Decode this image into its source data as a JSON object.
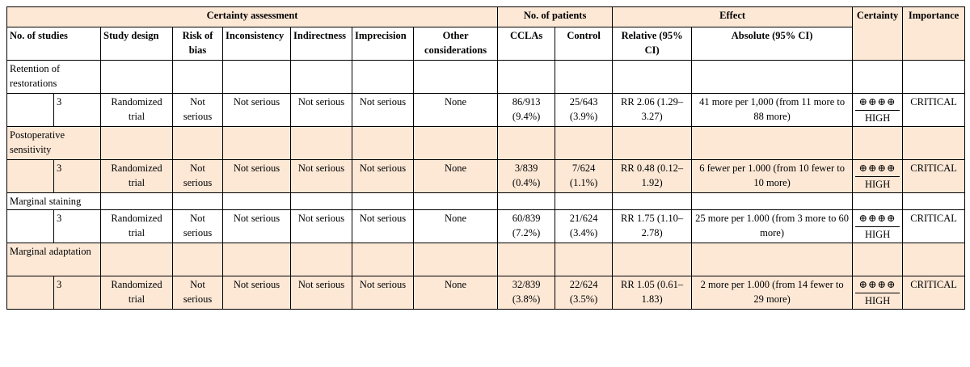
{
  "header": {
    "certainty_assessment": "Certainty assessment",
    "no_of_patients": "No. of patients",
    "effect": "Effect",
    "certainty": "Certainty",
    "importance": "Importance",
    "no_of_studies": "No. of studies",
    "study_design": "Study design",
    "risk_of_bias": "Risk of bias",
    "inconsistency": "Inconsistency",
    "indirectness": "Indirectness",
    "imprecision": "Imprecision",
    "other_considerations": "Other considerations",
    "cclas": "CCLAs",
    "control": "Control",
    "relative": "Relative (95% CI)",
    "absolute": "Absolute (95% CI)"
  },
  "outcomes": [
    {
      "name": "Retention of restorations",
      "studies": "3",
      "design": "Randomized trial",
      "risk": "Not serious",
      "inconsistency": "Not serious",
      "indirectness": "Not serious",
      "imprecision": "Not serious",
      "other": "None",
      "cclas": "86/913 (9.4%)",
      "control": "25/643 (3.9%)",
      "relative": "RR 2.06 (1.29–3.27)",
      "absolute": "41 more per 1,000 (from 11 more to 88 more)",
      "certainty_symbols": "⊕⊕⊕⊕",
      "certainty_level": "HIGH",
      "importance": "CRITICAL"
    },
    {
      "name": "Postoperative sensitivity",
      "studies": "3",
      "design": "Randomized trial",
      "risk": "Not serious",
      "inconsistency": "Not serious",
      "indirectness": "Not serious",
      "imprecision": "Not serious",
      "other": "None",
      "cclas": "3/839 (0.4%)",
      "control": "7/624 (1.1%)",
      "relative": "RR 0.48 (0.12–1.92)",
      "absolute": "6 fewer per 1.000 (from 10 fewer to 10 more)",
      "certainty_symbols": "⊕⊕⊕⊕",
      "certainty_level": "HIGH",
      "importance": "CRITICAL"
    },
    {
      "name": "Marginal staining",
      "studies": "3",
      "design": "Randomized trial",
      "risk": "Not serious",
      "inconsistency": "Not serious",
      "indirectness": "Not serious",
      "imprecision": "Not serious",
      "other": "None",
      "cclas": "60/839 (7.2%)",
      "control": "21/624 (3.4%)",
      "relative": "RR 1.75 (1.10–2.78)",
      "absolute": "25 more per 1.000 (from 3 more to 60 more)",
      "certainty_symbols": "⊕⊕⊕⊕",
      "certainty_level": "HIGH",
      "importance": "CRITICAL"
    },
    {
      "name": "Marginal adaptation",
      "studies": "3",
      "design": "Randomized trial",
      "risk": "Not serious",
      "inconsistency": "Not serious",
      "indirectness": "Not serious",
      "imprecision": "Not serious",
      "other": "None",
      "cclas": "32/839 (3.8%)",
      "control": "22/624 (3.5%)",
      "relative": "RR 1.05 (0.61–1.83)",
      "absolute": "2 more per 1.000 (from 14 fewer to 29 more)",
      "certainty_symbols": "⊕⊕⊕⊕",
      "certainty_level": "HIGH",
      "importance": "CRITICAL"
    }
  ],
  "colors": {
    "shade": "#fde8d6",
    "border": "#000000"
  }
}
